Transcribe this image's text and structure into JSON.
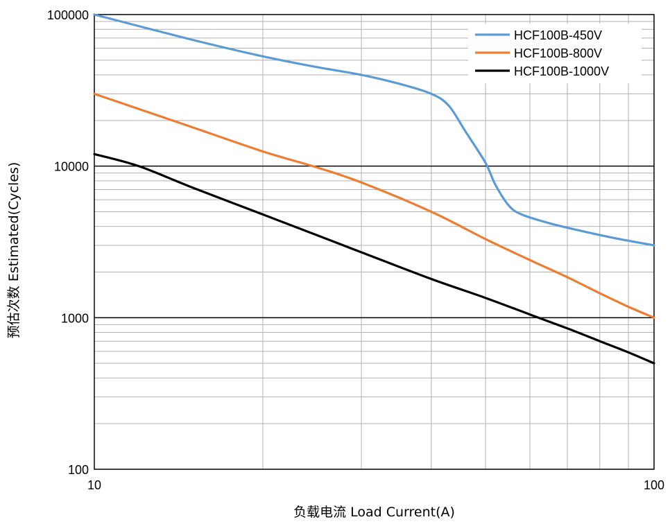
{
  "chart_data": {
    "type": "line",
    "xlabel": "负载电流 Load Current(A)",
    "ylabel": "预估次数 Estimated(Cycles)",
    "x_scale": "log",
    "y_scale": "log",
    "xlim": [
      10,
      100
    ],
    "ylim": [
      100,
      100000
    ],
    "x_ticks": [
      "10",
      "100"
    ],
    "y_ticks": [
      "100",
      "1000",
      "10000",
      "100000"
    ],
    "grid": true,
    "legend_position": "top-right",
    "series": [
      {
        "name": "HCF100B-450V",
        "color": "#5b9bd5",
        "points": [
          [
            10,
            100000
          ],
          [
            15,
            68000
          ],
          [
            20,
            53000
          ],
          [
            25,
            45000
          ],
          [
            30,
            40000
          ],
          [
            35,
            35000
          ],
          [
            40,
            30000
          ],
          [
            43,
            25000
          ],
          [
            46,
            17000
          ],
          [
            50,
            10500
          ],
          [
            52,
            7600
          ],
          [
            55,
            5500
          ],
          [
            58,
            4800
          ],
          [
            65,
            4200
          ],
          [
            75,
            3700
          ],
          [
            85,
            3350
          ],
          [
            100,
            3000
          ]
        ]
      },
      {
        "name": "HCF100B-800V",
        "color": "#ed7d31",
        "points": [
          [
            10,
            30000
          ],
          [
            15,
            18000
          ],
          [
            20,
            12500
          ],
          [
            25,
            9800
          ],
          [
            30,
            7800
          ],
          [
            40,
            5000
          ],
          [
            50,
            3300
          ],
          [
            60,
            2400
          ],
          [
            70,
            1850
          ],
          [
            80,
            1450
          ],
          [
            90,
            1180
          ],
          [
            100,
            1000
          ]
        ]
      },
      {
        "name": "HCF100B-1000V",
        "color": "#000000",
        "points": [
          [
            10,
            12000
          ],
          [
            12,
            10000
          ],
          [
            15,
            7200
          ],
          [
            20,
            4800
          ],
          [
            25,
            3500
          ],
          [
            30,
            2700
          ],
          [
            40,
            1800
          ],
          [
            50,
            1350
          ],
          [
            60,
            1050
          ],
          [
            70,
            850
          ],
          [
            80,
            700
          ],
          [
            90,
            590
          ],
          [
            100,
            500
          ]
        ]
      }
    ]
  }
}
